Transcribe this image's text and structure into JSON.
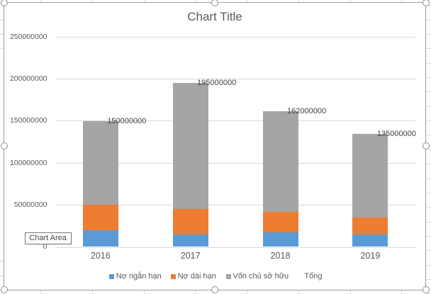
{
  "chart": {
    "title": "Chart Title",
    "tooltip_label": "Chart Area",
    "legend": [
      {
        "label": "Nợ ngắn hạn",
        "marker_color": "#5b9bd5",
        "marker_visible": true
      },
      {
        "label": "Nợ dài hạn",
        "marker_color": "#ed7d31",
        "marker_visible": true
      },
      {
        "label": "Vốn chủ sở hữu",
        "marker_color": "#a5a5a5",
        "marker_visible": true
      },
      {
        "label": "Tổng",
        "marker_color": null,
        "marker_visible": false
      }
    ]
  },
  "chart_data": {
    "type": "bar",
    "subtype": "stacked-column",
    "title": "Chart Title",
    "categories": [
      "2016",
      "2017",
      "2018",
      "2019"
    ],
    "series": [
      {
        "name": "Nợ ngắn hạn",
        "color": "#5b9bd5",
        "values": [
          20000000,
          15000000,
          17000000,
          15000000
        ]
      },
      {
        "name": "Nợ dài hạn",
        "color": "#ed7d31",
        "values": [
          30000000,
          30000000,
          25000000,
          20000000
        ]
      },
      {
        "name": "Vốn chủ sở hữu",
        "color": "#a5a5a5",
        "values": [
          100000000,
          150000000,
          120000000,
          100000000
        ]
      },
      {
        "name": "Tổng",
        "color": null,
        "render": "labels-only",
        "values": [
          150000000,
          195000000,
          162000000,
          135000000
        ],
        "labels": [
          "150000000",
          "195000000",
          "162000000",
          "135000000"
        ]
      }
    ],
    "xlabel": "",
    "ylabel": "",
    "ylim": [
      0,
      250000000
    ],
    "yticks": [
      0,
      50000000,
      100000000,
      150000000,
      200000000,
      250000000
    ],
    "ytick_labels": [
      "0",
      "50000000",
      "100000000",
      "150000000",
      "200000000",
      "250000000"
    ],
    "grid": true,
    "legend_position": "bottom"
  },
  "colors": {
    "bar_blue": "#5b9bd5",
    "bar_orange": "#ed7d31",
    "bar_gray": "#a5a5a5",
    "gridline": "#d9d9d9",
    "axis_text": "#595959",
    "data_label_text": "#404040",
    "chart_border": "#9d9d9d",
    "selection_handle_ring": "#8c8c8c",
    "sheet_gridline": "#d9d9d9",
    "tooltip_border": "#767676"
  }
}
